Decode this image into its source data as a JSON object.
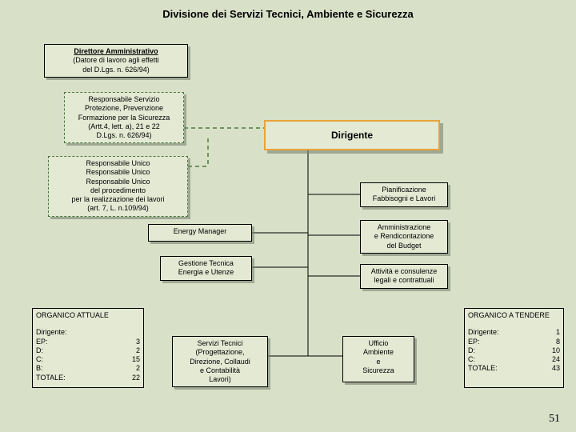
{
  "title": "Divisione dei Servizi Tecnici, Ambiente e Sicurezza",
  "pageNumber": "51",
  "colors": {
    "background": "#d9e0c8",
    "boxFill": "#e3e9d3",
    "boxBorder": "#000000",
    "dashedBorder": "#4a7a3e",
    "orangeBorder": "#e8a23a",
    "shadow": "rgba(120,130,110,0.6)",
    "connector": "#000000",
    "connectorDashed": "#4a7a3e"
  },
  "nodes": {
    "direttore": {
      "title": "Direttore Amministrativo",
      "sub": "(Datore di lavoro agli effetti\ndel D.Lgs. n. 626/94)"
    },
    "responsabileServizio": "Responsabile Servizio\nProtezione, Prevenzione\nFormazione per la Sicurezza\n(Artt.4, lett. a), 21 e 22\nD.Lgs. n. 626/94)",
    "responsabileUnico": "Responsabile Unico\nResponsabile Unico\nResponsabile Unico\ndel procedimento\nper la realizzazione dei lavori\n(art. 7, L. n.109/94)",
    "dirigente": "Dirigente",
    "pianificazione": "Pianificazione\nFabbisogni e Lavori",
    "amministrazione": "Amministrazione\ne Rendicontazione\ndel Budget",
    "attivita": "Attività e consulenze\nlegali e contrattuali",
    "energyManager": "Energy Manager",
    "gestioneTecnica": "Gestione Tecnica\nEnergia e Utenze",
    "serviziTecnici": "Servizi Tecnici\n(Progettazione,\nDirezione, Collaudi\ne Contabilità\nLavori)",
    "ufficioAmbiente": "Ufficio\nAmbiente\ne\nSicurezza"
  },
  "organicoAttuale": {
    "title": "ORGANICO ATTUALE",
    "rows": [
      [
        "Dirigente:",
        ""
      ],
      [
        "EP:",
        "3"
      ],
      [
        "D:",
        "2"
      ],
      [
        "C:",
        "15"
      ],
      [
        "B:",
        "2"
      ],
      [
        "TOTALE:",
        "22"
      ]
    ]
  },
  "organicoTendere": {
    "title": "ORGANICO A TENDERE",
    "rows": [
      [
        "Dirigente:",
        "1"
      ],
      [
        "EP:",
        "8"
      ],
      [
        "D:",
        "10"
      ],
      [
        "C:",
        "24"
      ],
      [
        "TOTALE:",
        "43"
      ]
    ]
  },
  "layout": {
    "direttore": [
      55,
      55,
      180,
      42
    ],
    "responsabileServizio": [
      80,
      115,
      150,
      58
    ],
    "responsabileUnico": [
      60,
      195,
      175,
      62
    ],
    "dirigente": [
      330,
      150,
      220,
      38
    ],
    "pianificazione": [
      450,
      228,
      110,
      30
    ],
    "amministrazione": [
      450,
      275,
      110,
      38
    ],
    "attivita": [
      450,
      330,
      110,
      30
    ],
    "energyManager": [
      185,
      280,
      130,
      22
    ],
    "gestioneTecnica": [
      200,
      320,
      115,
      28
    ],
    "serviziTecnici": [
      215,
      420,
      120,
      58
    ],
    "ufficioAmbiente": [
      428,
      420,
      90,
      58
    ],
    "organicoAttuale": [
      40,
      385,
      140,
      100
    ],
    "organicoTendere": [
      580,
      385,
      125,
      100
    ]
  }
}
